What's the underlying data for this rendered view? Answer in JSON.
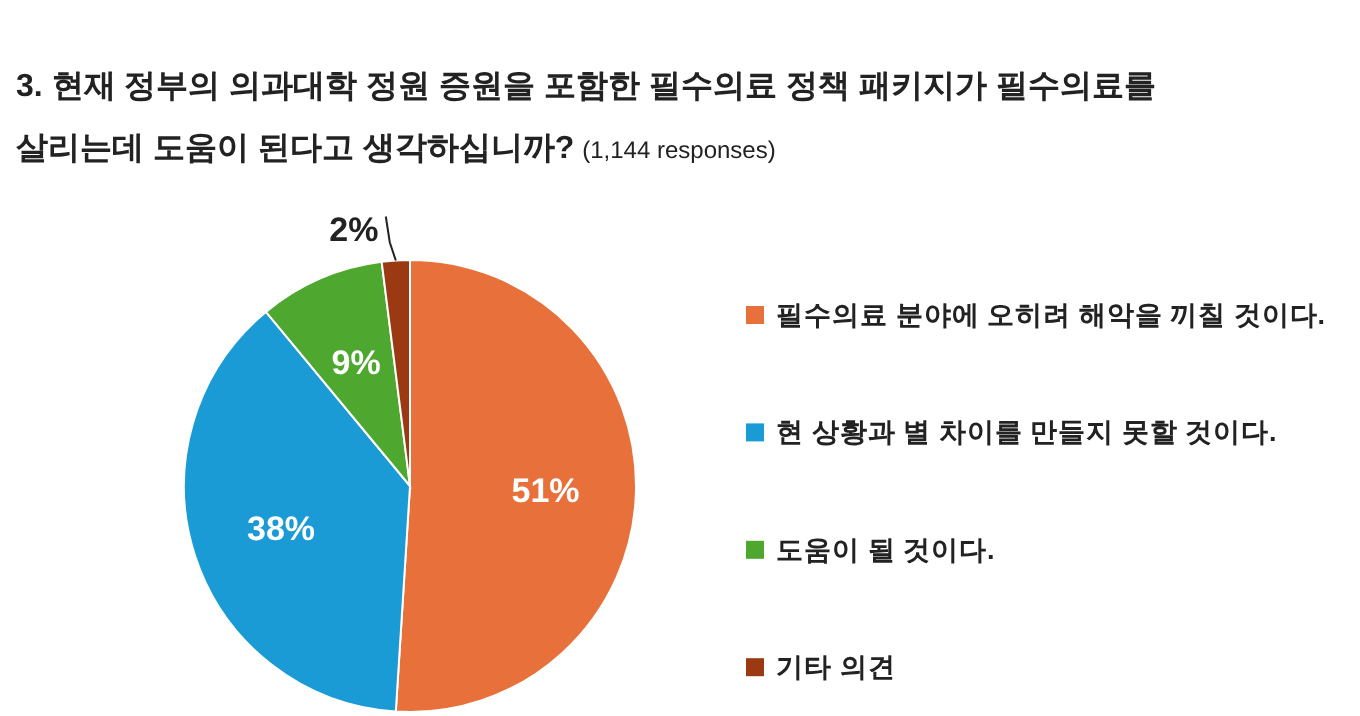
{
  "chart_data": {
    "type": "pie",
    "title": "3. 현재 정부의 의과대학 정원 증원을 포함한 필수의료 정책 패키지가 필수의료를 살리는데 도움이 된다고 생각하십니까?",
    "subtitle": "(1,144 responses)",
    "categories": [
      "필수의료 분야에 오히려 해악을 끼칠 것이다.",
      "현 상황과 별 차이를 만들지 못할 것이다.",
      "도움이 될 것이다.",
      "기타 의견"
    ],
    "values": [
      51,
      38,
      9,
      2
    ],
    "colors": [
      "#e8703a",
      "#1a9bd5",
      "#4ea72e",
      "#9b3a12"
    ],
    "value_labels": [
      "51%",
      "38%",
      "9%",
      "2%"
    ],
    "legend": "right"
  }
}
